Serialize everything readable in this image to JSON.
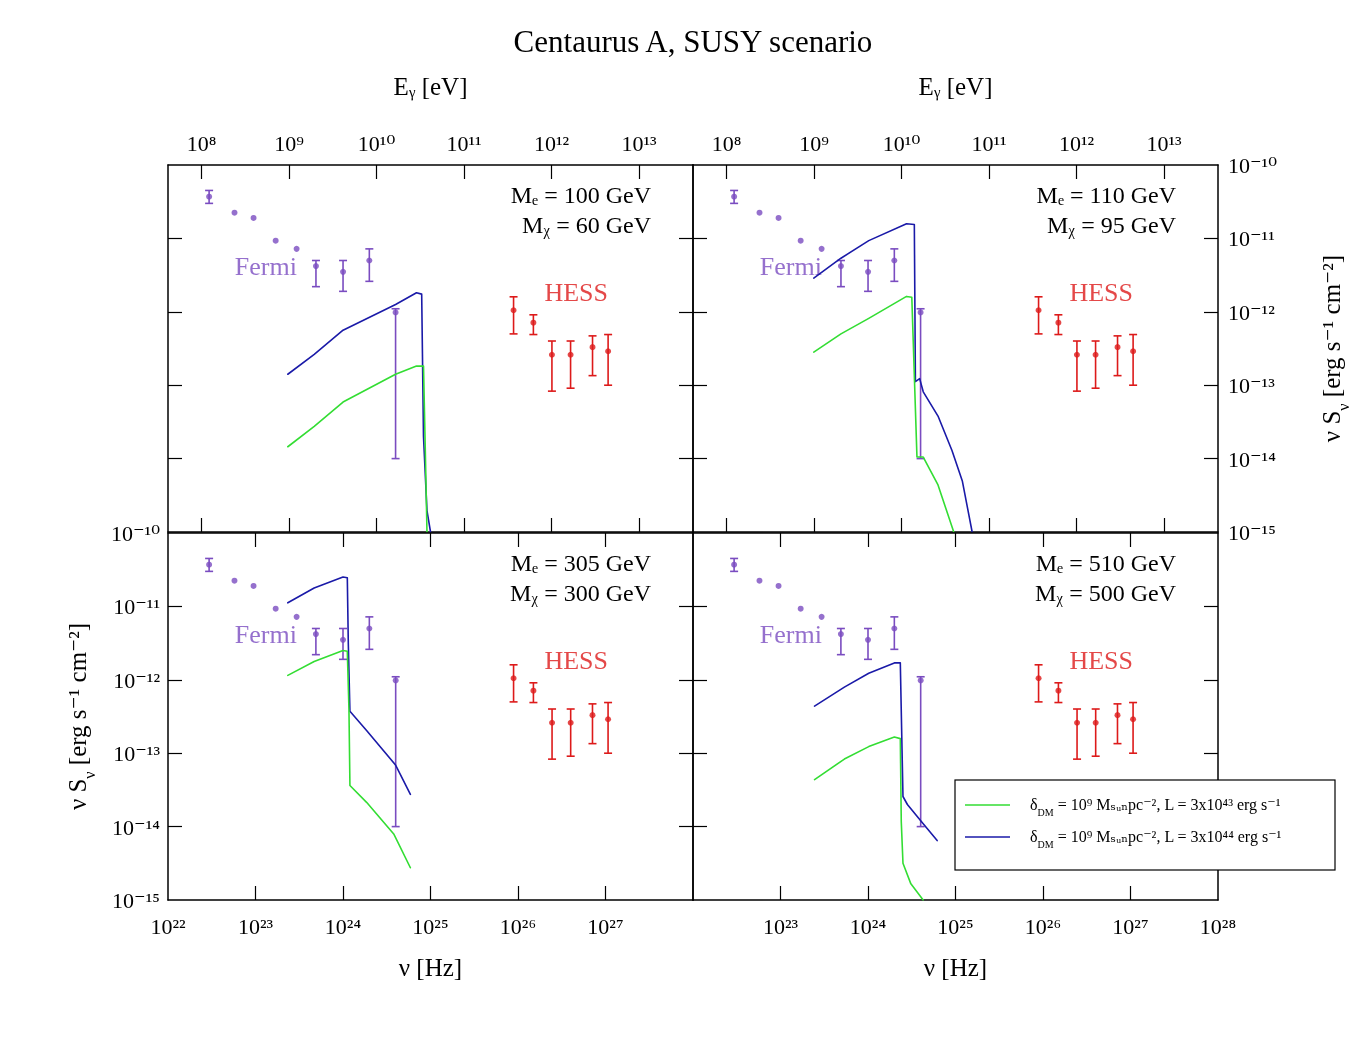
{
  "chart_data": [
    {
      "type": "line",
      "log": "xy",
      "title": "Centaurus A, SUSY scenario",
      "xlabel": "Eᵧ [eV]",
      "annotations": [
        "Mₑ = 100 GeV",
        "Mᵪ = 60 GeV"
      ],
      "tick_labels": "x",
      "xlim": [
        41360000.0,
        41360000000000.0
      ],
      "xticks": [
        {
          "value": 100000000.0,
          "label": "10⁸"
        },
        {
          "value": 1000000000.0,
          "label": "10⁹"
        },
        {
          "value": 10000000000.0,
          "label": "10¹⁰"
        },
        {
          "value": 100000000000.0,
          "label": "10¹¹"
        },
        {
          "value": 1000000000000.0,
          "label": "10¹²"
        },
        {
          "value": 10000000000000.0,
          "label": "10¹³"
        }
      ],
      "ylim": [
        1e-15,
        1e-10
      ],
      "yticks": [
        {
          "value": 1e-14,
          "label": null
        },
        {
          "value": 1e-13,
          "label": null
        },
        {
          "value": 1e-12,
          "label": null
        },
        {
          "value": 1e-11,
          "label": null
        }
      ],
      "series": [
        {
          "name": "Fermi",
          "type": "scatter",
          "marker": "circle",
          "color": "#7a4cc0",
          "x": [
            122000000.0,
            238000000.0,
            393000000.0,
            703000000.0,
            1220000000.0,
            2030000000.0,
            4140000000.0,
            8270000000.0,
            16500000000.0
          ],
          "values": [
            3.7e-11,
            2.24e-11,
            1.9e-11,
            9.3e-12,
            7.2e-12,
            4.2e-12,
            3.5e-12,
            5e-12,
            9.8e-13
          ],
          "errors": [
            [
              3e-11,
              4.5e-11
            ],
            null,
            null,
            null,
            null,
            [
              2.2e-12,
              5e-12
            ],
            [
              1.9e-12,
              5e-12
            ],
            [
              2.6e-12,
              7.2e-12
            ],
            [
              1e-14,
              1.1e-12
            ]
          ]
        },
        {
          "name": "HESS",
          "type": "scatter",
          "marker": "circle",
          "color": "#dd1a1a",
          "x": [
            368000000000.0,
            620000000000.0,
            1010000000000.0,
            1650000000000.0,
            2940000000000.0,
            4430000000000.0
          ],
          "values": [
            1.05e-12,
            7.1e-13,
            2.6e-13,
            2.6e-13,
            3.3e-13,
            2.9e-13
          ],
          "errors": [
            [
              5e-13,
              1.6e-12
            ],
            [
              4.9e-13,
              9.1e-13
            ],
            [
              8.3e-14,
              4e-13
            ],
            [
              9.1e-14,
              4e-13
            ],
            [
              1.35e-13,
              4.7e-13
            ],
            [
              1e-13,
              4.9e-13
            ]
          ]
        },
        {
          "color": "#1a1aa8",
          "x": [
            968000000.0,
            1940000000.0,
            4140000000.0,
            16500000000.0,
            28600000000.0,
            32800000000.0,
            34400000000.0,
            37700000000.0,
            41400000000.0
          ],
          "values": [
            1.41e-13,
            2.63e-13,
            5.62e-13,
            1.26e-12,
            1.82e-12,
            1.74e-12,
            2e-14,
            1.95e-15,
            1e-15
          ]
        },
        {
          "color": "#33dd33",
          "x": [
            968000000.0,
            1940000000.0,
            4140000000.0,
            16500000000.0,
            28600000000.0,
            34400000000.0,
            36000000000.0,
            37700000000.0
          ],
          "values": [
            1.45e-14,
            2.75e-14,
            5.89e-14,
            1.41e-13,
            1.82e-13,
            1.82e-13,
            1.45e-14,
            1e-15
          ]
        }
      ]
    },
    {
      "type": "line",
      "log": "xy",
      "xlabel": "Eᵧ [eV]",
      "ylabel": "ν S$_{ν}$ [erg s⁻¹ cm⁻²]",
      "annotations": [
        "Mₑ = 110 GeV",
        "Mᵪ = 95 GeV"
      ],
      "xlim": [
        41360000.0,
        41360000000000.0
      ],
      "xticks": [
        {
          "value": 100000000.0,
          "label": "10⁸"
        },
        {
          "value": 1000000000.0,
          "label": "10⁹"
        },
        {
          "value": 10000000000.0,
          "label": "10¹⁰"
        },
        {
          "value": 100000000000.0,
          "label": "10¹¹"
        },
        {
          "value": 1000000000000.0,
          "label": "10¹²"
        },
        {
          "value": 10000000000000.0,
          "label": "10¹³"
        }
      ],
      "ylim": [
        1e-15,
        1e-10
      ],
      "yticks": [
        {
          "value": 1e-15,
          "label": "10⁻¹⁵"
        },
        {
          "value": 1e-14,
          "label": "10⁻¹⁴"
        },
        {
          "value": 1e-13,
          "label": "10⁻¹³"
        },
        {
          "value": 1e-12,
          "label": "10⁻¹²"
        },
        {
          "value": 1e-11,
          "label": "10⁻¹¹"
        },
        {
          "value": 1e-10,
          "label": "10⁻¹⁰"
        }
      ],
      "series": [
        {
          "name": "Fermi",
          "type": "scatter",
          "marker": "circle",
          "color": "#7a4cc0",
          "x": [
            122000000.0,
            238000000.0,
            393000000.0,
            703000000.0,
            1220000000.0,
            2030000000.0,
            4140000000.0,
            8270000000.0,
            16500000000.0
          ],
          "values": [
            3.7e-11,
            2.24e-11,
            1.9e-11,
            9.3e-12,
            7.2e-12,
            4.2e-12,
            3.5e-12,
            5e-12,
            9.8e-13
          ],
          "errors": [
            [
              3e-11,
              4.5e-11
            ],
            null,
            null,
            null,
            null,
            [
              2.2e-12,
              5e-12
            ],
            [
              1.9e-12,
              5e-12
            ],
            [
              2.6e-12,
              7.2e-12
            ],
            [
              1e-14,
              1.1e-12
            ]
          ]
        },
        {
          "name": "HESS",
          "type": "scatter",
          "marker": "circle",
          "color": "#dd1a1a",
          "x": [
            368000000000.0,
            620000000000.0,
            1010000000000.0,
            1650000000000.0,
            2940000000000.0,
            4430000000000.0
          ],
          "values": [
            1.05e-12,
            7.1e-13,
            2.6e-13,
            2.6e-13,
            3.3e-13,
            2.9e-13
          ],
          "errors": [
            [
              5e-13,
              1.6e-12
            ],
            [
              4.9e-13,
              9.1e-13
            ],
            [
              8.3e-14,
              4e-13
            ],
            [
              9.1e-14,
              4e-13
            ],
            [
              1.35e-13,
              4.7e-13
            ],
            [
              1e-13,
              4.9e-13
            ]
          ]
        },
        {
          "color": "#1a1aa8",
          "x": [
            993000000.0,
            2030000000.0,
            4220000000.0,
            11400000000.0,
            14000000000.0,
            14400000000.0,
            16100000000.0,
            17700000000.0,
            26100000000.0,
            37700000000.0,
            49600000000.0,
            64100000000.0
          ],
          "values": [
            2.88e-12,
            5.37e-12,
            9.33e-12,
            1.58e-11,
            1.55e-11,
            1.12e-13,
            1.23e-13,
            8.13e-14,
            3.8e-14,
            1.29e-14,
            4.9e-15,
            1e-15
          ]
        },
        {
          "color": "#33dd33",
          "x": [
            993000000.0,
            2030000000.0,
            4220000000.0,
            11400000000.0,
            13100000000.0,
            15000000000.0,
            17700000000.0,
            26100000000.0,
            39500000000.0
          ],
          "values": [
            2.82e-13,
            5e-13,
            8.13e-13,
            1.62e-12,
            1.58e-12,
            1.05e-14,
            1.05e-14,
            4.37e-15,
            1e-15
          ]
        }
      ]
    },
    {
      "type": "line",
      "log": "xy",
      "xlabel": "ν [Hz]",
      "ylabel": "ν S$_{ν}$ [erg s⁻¹ cm⁻²]",
      "annotations": [
        "Mₑ = 305 GeV",
        "Mᵪ = 300 GeV"
      ],
      "xlim": [
        1e+22,
        1e+28
      ],
      "xticks": [
        {
          "value": 1e+22,
          "label": "10²²"
        },
        {
          "value": 1e+23,
          "label": "10²³"
        },
        {
          "value": 1e+24,
          "label": "10²⁴"
        },
        {
          "value": 1e+25,
          "label": "10²⁵"
        },
        {
          "value": 1e+26,
          "label": "10²⁶"
        },
        {
          "value": 1e+27,
          "label": "10²⁷"
        }
      ],
      "ylim": [
        1e-15,
        1e-10
      ],
      "yticks": [
        {
          "value": 1e-15,
          "label": "10⁻¹⁵"
        },
        {
          "value": 1e-14,
          "label": "10⁻¹⁴"
        },
        {
          "value": 1e-13,
          "label": "10⁻¹³"
        },
        {
          "value": 1e-12,
          "label": "10⁻¹²"
        },
        {
          "value": 1e-11,
          "label": "10⁻¹¹"
        },
        {
          "value": 1e-10,
          "label": "10⁻¹⁰"
        }
      ],
      "series": [
        {
          "name": "Fermi",
          "type": "scatter",
          "marker": "circle",
          "color": "#7a4cc0",
          "x": [
            2.95e+22,
            5.75e+22,
            9.5e+22,
            1.7e+23,
            2.95e+23,
            4.9e+23,
            1e+24,
            2e+24,
            4e+24
          ],
          "values": [
            3.7e-11,
            2.24e-11,
            1.9e-11,
            9.3e-12,
            7.2e-12,
            4.2e-12,
            3.5e-12,
            5e-12,
            9.8e-13
          ],
          "errors": [
            [
              3e-11,
              4.5e-11
            ],
            null,
            null,
            null,
            null,
            [
              2.2e-12,
              5e-12
            ],
            [
              1.9e-12,
              5e-12
            ],
            [
              2.6e-12,
              7.2e-12
            ],
            [
              1e-14,
              1.1e-12
            ]
          ]
        },
        {
          "name": "HESS",
          "type": "scatter",
          "marker": "circle",
          "color": "#dd1a1a",
          "x": [
            8.9e+25,
            1.5e+26,
            2.45e+26,
            4e+26,
            7.1e+26,
            1.07e+27
          ],
          "values": [
            1.05e-12,
            7.1e-13,
            2.6e-13,
            2.6e-13,
            3.3e-13,
            2.9e-13
          ],
          "errors": [
            [
              5e-13,
              1.6e-12
            ],
            [
              4.9e-13,
              9.1e-13
            ],
            [
              8.3e-14,
              4e-13
            ],
            [
              9.1e-14,
              4e-13
            ],
            [
              1.35e-13,
              4.7e-13
            ],
            [
              1e-13,
              4.9e-13
            ]
          ]
        },
        {
          "color": "#1a1aa8",
          "x": [
            2.34e+23,
            4.68e+23,
            1e+24,
            1.12e+24,
            1.15e+24,
            1.2e+24,
            1.86e+24,
            3.98e+24,
            5.89e+24
          ],
          "values": [
            1.12e-11,
            1.78e-11,
            2.51e-11,
            2.45e-11,
            3.09e-12,
            3.72e-13,
            2.04e-13,
            6.92e-14,
            2.75e-14
          ]
        },
        {
          "color": "#33dd33",
          "x": [
            2.34e+23,
            4.68e+23,
            1e+24,
            1.12e+24,
            1.17e+24,
            1.2e+24,
            1.86e+24,
            3.8e+24,
            5.89e+24
          ],
          "values": [
            1.15e-12,
            1.78e-12,
            2.51e-12,
            2.45e-12,
            3.89e-13,
            3.63e-14,
            2.14e-14,
            7.94e-15,
            2.75e-15
          ]
        }
      ]
    },
    {
      "type": "line",
      "log": "xy",
      "xlabel": "ν [Hz]",
      "annotations": [
        "Mₑ = 510 GeV",
        "Mᵪ = 500 GeV"
      ],
      "tick_labels": "x",
      "legend": "bottom right",
      "xlim": [
        1e+22,
        1e+28
      ],
      "xticks": [
        {
          "value": 1e+23,
          "label": "10²³"
        },
        {
          "value": 1e+24,
          "label": "10²⁴"
        },
        {
          "value": 1e+25,
          "label": "10²⁵"
        },
        {
          "value": 1e+26,
          "label": "10²⁶"
        },
        {
          "value": 1e+27,
          "label": "10²⁷"
        },
        {
          "value": 1e+28,
          "label": "10²⁸"
        }
      ],
      "ylim": [
        1e-15,
        1e-10
      ],
      "yticks": [
        {
          "value": 1e-14,
          "label": null
        },
        {
          "value": 1e-13,
          "label": null
        },
        {
          "value": 1e-12,
          "label": null
        },
        {
          "value": 1e-11,
          "label": null
        }
      ],
      "series": [
        {
          "name": "Fermi",
          "type": "scatter",
          "marker": "circle",
          "color": "#7a4cc0",
          "x": [
            2.95e+22,
            5.75e+22,
            9.5e+22,
            1.7e+23,
            2.95e+23,
            4.9e+23,
            1e+24,
            2e+24,
            4e+24
          ],
          "values": [
            3.7e-11,
            2.24e-11,
            1.9e-11,
            9.3e-12,
            7.2e-12,
            4.2e-12,
            3.5e-12,
            5e-12,
            9.8e-13
          ],
          "errors": [
            [
              3e-11,
              4.5e-11
            ],
            null,
            null,
            null,
            null,
            [
              2.2e-12,
              5e-12
            ],
            [
              1.9e-12,
              5e-12
            ],
            [
              2.6e-12,
              7.2e-12
            ],
            [
              1e-14,
              1.1e-12
            ]
          ]
        },
        {
          "name": "HESS",
          "type": "scatter",
          "marker": "circle",
          "color": "#dd1a1a",
          "x": [
            8.9e+25,
            1.5e+26,
            2.45e+26,
            4e+26,
            7.1e+26,
            1.07e+27
          ],
          "values": [
            1.05e-12,
            7.1e-13,
            2.6e-13,
            2.6e-13,
            3.3e-13,
            2.9e-13
          ],
          "errors": [
            [
              5e-13,
              1.6e-12
            ],
            [
              4.9e-13,
              9.1e-13
            ],
            [
              8.3e-14,
              4e-13
            ],
            [
              9.1e-14,
              4e-13
            ],
            [
              1.35e-13,
              4.7e-13
            ],
            [
              1e-13,
              4.9e-13
            ]
          ]
        },
        {
          "name": "δ$_{DM}$ = 10⁹ Mₛᵤₙpc⁻², L = 3x10⁴³ erg s⁻¹",
          "color": "#33dd33",
          "x": [
            2.45e+23,
            5.37e+23,
            1.02e+24,
            2e+24,
            2.34e+24,
            2.4e+24,
            2.51e+24,
            3.09e+24,
            4.27e+24
          ],
          "values": [
            4.37e-14,
            8.32e-14,
            1.23e-13,
            1.66e-13,
            1.58e-13,
            1.17e-14,
            3.16e-15,
            1.66e-15,
            1e-15
          ]
        },
        {
          "name": "δ$_{DM}$ = 10⁹ Mₛᵤₙpc⁻², L = 3x10⁴⁴ erg s⁻¹",
          "color": "#1a1aa8",
          "x": [
            2.45e+23,
            5.37e+23,
            1.02e+24,
            2e+24,
            2.34e+24,
            2.51e+24,
            2.82e+24,
            4.07e+24,
            6.17e+24
          ],
          "values": [
            4.37e-13,
            7.94e-13,
            1.23e-12,
            1.7e-12,
            1.7e-12,
            2.57e-14,
            2e-14,
            1.17e-14,
            6.46e-15
          ]
        }
      ]
    }
  ]
}
